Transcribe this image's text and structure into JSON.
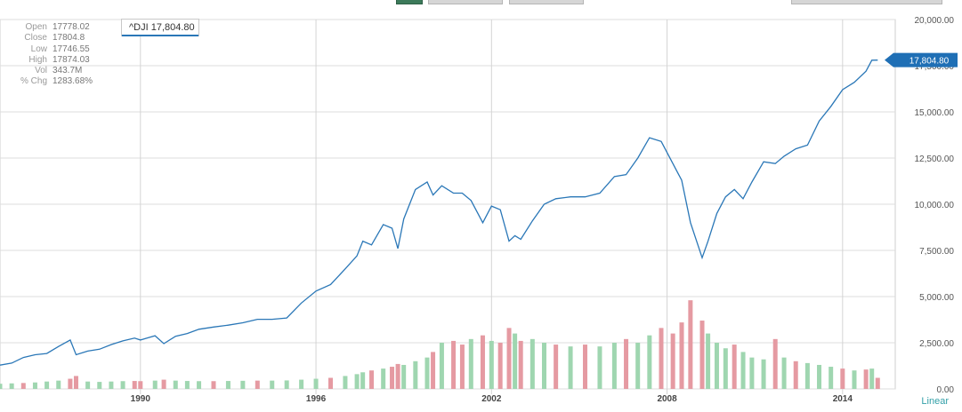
{
  "toolbar": {
    "tabs": [
      {
        "name": "tab-1",
        "active": true
      },
      {
        "name": "tab-2",
        "active": false
      },
      {
        "name": "tab-3",
        "active": false
      },
      {
        "name": "tab-4",
        "active": false
      }
    ]
  },
  "stats": [
    {
      "label": "Open",
      "value": "17778.02"
    },
    {
      "label": "Close",
      "value": "17804.8"
    },
    {
      "label": "Low",
      "value": "17746.55"
    },
    {
      "label": "High",
      "value": "17874.03"
    },
    {
      "label": "Vol",
      "value": "343.7M"
    },
    {
      "label": "% Chg",
      "value": "1283.68%"
    }
  ],
  "ticker_label": "^DJI 17,804.80",
  "colors": {
    "line": "#2a77b7",
    "vol_up": "#9fd6b0",
    "vol_down": "#e59aa2",
    "grid": "#dcdcdc",
    "axis_text": "#555555",
    "linear_label": "#33a0a8",
    "last_tag": "#1f6fb5"
  },
  "chart_data": {
    "type": "line",
    "title": "",
    "xlabel": "",
    "ylabel": "",
    "scale_label": "Linear",
    "x_ticks": [
      "1990",
      "1996",
      "2002",
      "2008",
      "2014"
    ],
    "x_tick_years": [
      1990,
      1996,
      2002,
      2008,
      2014
    ],
    "xlim": [
      1985.2,
      2015.8
    ],
    "y_ticks": [
      "0.00",
      "2,500.00",
      "5,000.00",
      "7,500.00",
      "10,000.00",
      "12,500.00",
      "15,000.00",
      "17,500.00",
      "20,000.00"
    ],
    "ylim": [
      0,
      20000
    ],
    "last_value_label": "17,804.80",
    "grid": true,
    "series": [
      {
        "x": [
          1985.2,
          1985.6,
          1986.0,
          1986.4,
          1986.8,
          1987.2,
          1987.6,
          1987.8,
          1988.2,
          1988.6,
          1989.0,
          1989.4,
          1989.8,
          1990.0,
          1990.5,
          1990.8,
          1991.2,
          1991.6,
          1992.0,
          1992.5,
          1993.0,
          1993.5,
          1994.0,
          1994.5,
          1995.0,
          1995.5,
          1996.0,
          1996.5,
          1997.0,
          1997.4,
          1997.6,
          1997.9,
          1998.3,
          1998.6,
          1998.8,
          1999.0,
          1999.4,
          1999.8,
          2000.0,
          2000.3,
          2000.7,
          2001.0,
          2001.3,
          2001.7,
          2002.0,
          2002.3,
          2002.6,
          2002.8,
          2003.0,
          2003.4,
          2003.8,
          2004.2,
          2004.7,
          2005.2,
          2005.7,
          2006.2,
          2006.6,
          2007.0,
          2007.4,
          2007.8,
          2008.2,
          2008.5,
          2008.8,
          2009.2,
          2009.4,
          2009.7,
          2010.0,
          2010.3,
          2010.6,
          2010.9,
          2011.3,
          2011.7,
          2012.0,
          2012.4,
          2012.8,
          2013.2,
          2013.6,
          2014.0,
          2014.4,
          2014.8,
          2015.0,
          2015.2
        ],
        "y": [
          1290,
          1400,
          1700,
          1850,
          1920,
          2300,
          2650,
          1850,
          2050,
          2150,
          2400,
          2600,
          2750,
          2650,
          2880,
          2450,
          2850,
          3000,
          3230,
          3350,
          3450,
          3580,
          3770,
          3770,
          3840,
          4650,
          5300,
          5650,
          6500,
          7200,
          8000,
          7800,
          8900,
          8700,
          7600,
          9200,
          10800,
          11200,
          10500,
          11000,
          10600,
          10600,
          10200,
          9000,
          9900,
          9700,
          8000,
          8300,
          8100,
          9100,
          10000,
          10300,
          10400,
          10400,
          10600,
          11500,
          11600,
          12500,
          13600,
          13400,
          12200,
          11300,
          9000,
          7100,
          8000,
          9500,
          10400,
          10800,
          10300,
          11200,
          12300,
          12200,
          12600,
          13000,
          13200,
          14500,
          15300,
          16200,
          16600,
          17200,
          17800,
          17805
        ]
      }
    ],
    "volume_ylim": [
      0,
      20000
    ],
    "volume": [
      {
        "x": 1985.2,
        "v": 280,
        "dir": "up"
      },
      {
        "x": 1985.6,
        "v": 300,
        "dir": "up"
      },
      {
        "x": 1986.0,
        "v": 320,
        "dir": "down"
      },
      {
        "x": 1986.4,
        "v": 350,
        "dir": "up"
      },
      {
        "x": 1986.8,
        "v": 400,
        "dir": "up"
      },
      {
        "x": 1987.2,
        "v": 450,
        "dir": "up"
      },
      {
        "x": 1987.6,
        "v": 550,
        "dir": "down"
      },
      {
        "x": 1987.8,
        "v": 700,
        "dir": "down"
      },
      {
        "x": 1988.2,
        "v": 400,
        "dir": "up"
      },
      {
        "x": 1988.6,
        "v": 380,
        "dir": "up"
      },
      {
        "x": 1989.0,
        "v": 400,
        "dir": "up"
      },
      {
        "x": 1989.4,
        "v": 420,
        "dir": "up"
      },
      {
        "x": 1989.8,
        "v": 430,
        "dir": "down"
      },
      {
        "x": 1990.0,
        "v": 420,
        "dir": "down"
      },
      {
        "x": 1990.5,
        "v": 450,
        "dir": "up"
      },
      {
        "x": 1990.8,
        "v": 500,
        "dir": "down"
      },
      {
        "x": 1991.2,
        "v": 450,
        "dir": "up"
      },
      {
        "x": 1991.6,
        "v": 430,
        "dir": "up"
      },
      {
        "x": 1992.0,
        "v": 420,
        "dir": "up"
      },
      {
        "x": 1992.5,
        "v": 420,
        "dir": "down"
      },
      {
        "x": 1993.0,
        "v": 430,
        "dir": "up"
      },
      {
        "x": 1993.5,
        "v": 440,
        "dir": "up"
      },
      {
        "x": 1994.0,
        "v": 450,
        "dir": "down"
      },
      {
        "x": 1994.5,
        "v": 450,
        "dir": "up"
      },
      {
        "x": 1995.0,
        "v": 460,
        "dir": "up"
      },
      {
        "x": 1995.5,
        "v": 500,
        "dir": "up"
      },
      {
        "x": 1996.0,
        "v": 550,
        "dir": "up"
      },
      {
        "x": 1996.5,
        "v": 600,
        "dir": "down"
      },
      {
        "x": 1997.0,
        "v": 700,
        "dir": "up"
      },
      {
        "x": 1997.4,
        "v": 800,
        "dir": "up"
      },
      {
        "x": 1997.6,
        "v": 900,
        "dir": "up"
      },
      {
        "x": 1997.9,
        "v": 1000,
        "dir": "down"
      },
      {
        "x": 1998.3,
        "v": 1100,
        "dir": "up"
      },
      {
        "x": 1998.6,
        "v": 1200,
        "dir": "down"
      },
      {
        "x": 1998.8,
        "v": 1350,
        "dir": "down"
      },
      {
        "x": 1999.0,
        "v": 1300,
        "dir": "up"
      },
      {
        "x": 1999.4,
        "v": 1500,
        "dir": "up"
      },
      {
        "x": 1999.8,
        "v": 1700,
        "dir": "up"
      },
      {
        "x": 2000.0,
        "v": 2000,
        "dir": "down"
      },
      {
        "x": 2000.3,
        "v": 2500,
        "dir": "up"
      },
      {
        "x": 2000.7,
        "v": 2600,
        "dir": "down"
      },
      {
        "x": 2001.0,
        "v": 2400,
        "dir": "down"
      },
      {
        "x": 2001.3,
        "v": 2700,
        "dir": "up"
      },
      {
        "x": 2001.7,
        "v": 2900,
        "dir": "down"
      },
      {
        "x": 2002.0,
        "v": 2600,
        "dir": "up"
      },
      {
        "x": 2002.3,
        "v": 2500,
        "dir": "down"
      },
      {
        "x": 2002.6,
        "v": 3300,
        "dir": "down"
      },
      {
        "x": 2002.8,
        "v": 3000,
        "dir": "up"
      },
      {
        "x": 2003.0,
        "v": 2600,
        "dir": "down"
      },
      {
        "x": 2003.4,
        "v": 2700,
        "dir": "up"
      },
      {
        "x": 2003.8,
        "v": 2500,
        "dir": "up"
      },
      {
        "x": 2004.2,
        "v": 2400,
        "dir": "down"
      },
      {
        "x": 2004.7,
        "v": 2300,
        "dir": "up"
      },
      {
        "x": 2005.2,
        "v": 2400,
        "dir": "down"
      },
      {
        "x": 2005.7,
        "v": 2300,
        "dir": "up"
      },
      {
        "x": 2006.2,
        "v": 2500,
        "dir": "up"
      },
      {
        "x": 2006.6,
        "v": 2700,
        "dir": "down"
      },
      {
        "x": 2007.0,
        "v": 2500,
        "dir": "up"
      },
      {
        "x": 2007.4,
        "v": 2900,
        "dir": "up"
      },
      {
        "x": 2007.8,
        "v": 3300,
        "dir": "down"
      },
      {
        "x": 2008.2,
        "v": 3000,
        "dir": "down"
      },
      {
        "x": 2008.5,
        "v": 3600,
        "dir": "down"
      },
      {
        "x": 2008.8,
        "v": 4800,
        "dir": "down"
      },
      {
        "x": 2009.2,
        "v": 3700,
        "dir": "down"
      },
      {
        "x": 2009.4,
        "v": 3000,
        "dir": "up"
      },
      {
        "x": 2009.7,
        "v": 2500,
        "dir": "up"
      },
      {
        "x": 2010.0,
        "v": 2200,
        "dir": "up"
      },
      {
        "x": 2010.3,
        "v": 2400,
        "dir": "down"
      },
      {
        "x": 2010.6,
        "v": 2000,
        "dir": "up"
      },
      {
        "x": 2010.9,
        "v": 1700,
        "dir": "up"
      },
      {
        "x": 2011.3,
        "v": 1600,
        "dir": "up"
      },
      {
        "x": 2011.7,
        "v": 2700,
        "dir": "down"
      },
      {
        "x": 2012.0,
        "v": 1700,
        "dir": "up"
      },
      {
        "x": 2012.4,
        "v": 1500,
        "dir": "down"
      },
      {
        "x": 2012.8,
        "v": 1400,
        "dir": "up"
      },
      {
        "x": 2013.2,
        "v": 1300,
        "dir": "up"
      },
      {
        "x": 2013.6,
        "v": 1200,
        "dir": "up"
      },
      {
        "x": 2014.0,
        "v": 1100,
        "dir": "down"
      },
      {
        "x": 2014.4,
        "v": 1000,
        "dir": "up"
      },
      {
        "x": 2014.8,
        "v": 1050,
        "dir": "down"
      },
      {
        "x": 2015.0,
        "v": 1100,
        "dir": "up"
      },
      {
        "x": 2015.2,
        "v": 600,
        "dir": "down"
      }
    ]
  }
}
